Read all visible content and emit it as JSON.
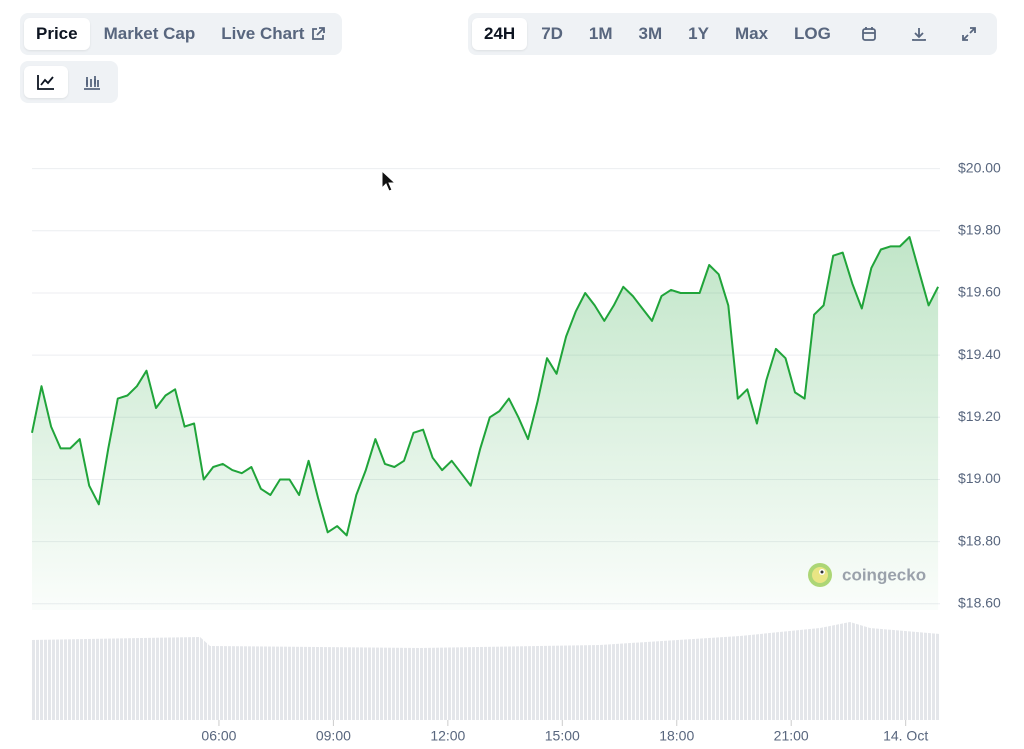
{
  "toolbar": {
    "tabs": [
      "Price",
      "Market Cap",
      "Live Chart"
    ],
    "ranges": [
      "24H",
      "7D",
      "1M",
      "3M",
      "1Y",
      "Max",
      "LOG"
    ]
  },
  "chart_data": {
    "type": "line",
    "watermark": "coingecko",
    "color": "#20a43a",
    "grid": true,
    "x": [
      1.1,
      1.35,
      1.6,
      1.85,
      2.1,
      2.35,
      2.6,
      2.85,
      3.1,
      3.35,
      3.6,
      3.85,
      4.1,
      4.35,
      4.6,
      4.85,
      5.1,
      5.35,
      5.6,
      5.85,
      6.1,
      6.35,
      6.6,
      6.85,
      7.1,
      7.35,
      7.6,
      7.85,
      8.1,
      8.35,
      8.6,
      8.85,
      9.1,
      9.35,
      9.6,
      9.85,
      10.1,
      10.35,
      10.6,
      10.85,
      11.1,
      11.35,
      11.6,
      11.85,
      12.1,
      12.35,
      12.6,
      12.85,
      13.1,
      13.35,
      13.6,
      13.85,
      14.1,
      14.35,
      14.6,
      14.85,
      15.1,
      15.35,
      15.6,
      15.85,
      16.1,
      16.35,
      16.6,
      16.85,
      17.1,
      17.35,
      17.6,
      17.85,
      18.1,
      18.35,
      18.6,
      18.85,
      19.1,
      19.35,
      19.6,
      19.85,
      20.1,
      20.35,
      20.6,
      20.85,
      21.1,
      21.35,
      21.6,
      21.85,
      22.1,
      22.35,
      22.6,
      22.85,
      23.1,
      23.35,
      23.6,
      23.85,
      24.1,
      24.35,
      24.6,
      24.85
    ],
    "values": [
      19.15,
      19.3,
      19.17,
      19.1,
      19.1,
      19.13,
      18.98,
      18.92,
      19.1,
      19.26,
      19.27,
      19.3,
      19.35,
      19.23,
      19.27,
      19.29,
      19.17,
      19.18,
      19.0,
      19.04,
      19.05,
      19.03,
      19.02,
      19.04,
      18.97,
      18.95,
      19.0,
      19.0,
      18.95,
      19.06,
      18.94,
      18.83,
      18.85,
      18.82,
      18.95,
      19.03,
      19.13,
      19.05,
      19.04,
      19.06,
      19.15,
      19.16,
      19.07,
      19.03,
      19.06,
      19.02,
      18.98,
      19.1,
      19.2,
      19.22,
      19.26,
      19.2,
      19.13,
      19.25,
      19.39,
      19.34,
      19.46,
      19.54,
      19.6,
      19.56,
      19.51,
      19.56,
      19.62,
      19.59,
      19.55,
      19.51,
      19.59,
      19.61,
      19.6,
      19.6,
      19.6,
      19.69,
      19.66,
      19.56,
      19.26,
      19.29,
      19.18,
      19.32,
      19.42,
      19.39,
      19.28,
      19.26,
      19.53,
      19.56,
      19.72,
      19.73,
      19.63,
      19.55,
      19.68,
      19.74,
      19.75,
      19.75,
      19.78,
      19.67,
      19.56,
      19.62
    ],
    "xlim": [
      1.1,
      24.9
    ],
    "xticks": [
      {
        "value": 6,
        "label": "06:00"
      },
      {
        "value": 9,
        "label": "09:00"
      },
      {
        "value": 12,
        "label": "12:00"
      },
      {
        "value": 15,
        "label": "15:00"
      },
      {
        "value": 18,
        "label": "18:00"
      },
      {
        "value": 21,
        "label": "21:00"
      },
      {
        "value": 24,
        "label": "14. Oct"
      }
    ],
    "ylim": [
      18.58,
      20.06
    ],
    "yticks": [
      {
        "value": 18.6,
        "label": "$18.60"
      },
      {
        "value": 18.8,
        "label": "$18.80"
      },
      {
        "value": 19.0,
        "label": "$19.00"
      },
      {
        "value": 19.2,
        "label": "$19.20"
      },
      {
        "value": 19.4,
        "label": "$19.40"
      },
      {
        "value": 19.6,
        "label": "$19.60"
      },
      {
        "value": 19.8,
        "label": "$19.80"
      },
      {
        "value": 20.0,
        "label": "$20.00"
      }
    ]
  }
}
